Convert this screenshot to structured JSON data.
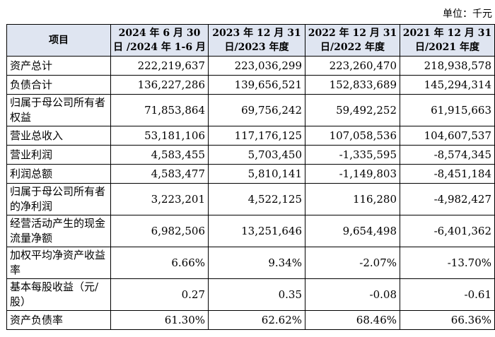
{
  "unit_note": "单位：千元",
  "table": {
    "headers": [
      "项目",
      "2024 年 6 月 30 日 /2024 年 1-6 月",
      "2023 年 12 月 31 日/2023 年度",
      "2022 年 12 月 31 日/2022 年度",
      "2021 年 12 月 31 日/2021 年度"
    ],
    "rows": [
      {
        "label": "资产总计",
        "values": [
          "222,219,637",
          "223,036,299",
          "223,260,470",
          "218,938,578"
        ]
      },
      {
        "label": "负债合计",
        "values": [
          "136,227,286",
          "139,656,521",
          "152,833,689",
          "145,294,314"
        ]
      },
      {
        "label": "归属于母公司所有者权益",
        "values": [
          "71,853,864",
          "69,756,242",
          "59,492,252",
          "61,915,663"
        ]
      },
      {
        "label": "营业总收入",
        "values": [
          "53,181,106",
          "117,176,125",
          "107,058,536",
          "104,607,537"
        ]
      },
      {
        "label": "营业利润",
        "values": [
          "4,583,455",
          "5,703,450",
          "-1,335,595",
          "-8,574,345"
        ]
      },
      {
        "label": "利润总额",
        "values": [
          "4,583,477",
          "5,810,141",
          "-1,149,803",
          "-8,451,184"
        ]
      },
      {
        "label": "归属于母公司所有者的净利润",
        "values": [
          "3,223,201",
          "4,522,125",
          "116,280",
          "-4,982,427"
        ]
      },
      {
        "label": "经营活动产生的现金流量净额",
        "values": [
          "6,982,506",
          "13,251,646",
          "9,654,498",
          "-6,401,362"
        ]
      },
      {
        "label": "加权平均净资产收益率",
        "values": [
          "6.66%",
          "9.34%",
          "-2.07%",
          "-13.70%"
        ]
      },
      {
        "label": "基本每股收益（元/股）",
        "values": [
          "0.27",
          "0.35",
          "-0.08",
          "-0.61"
        ]
      },
      {
        "label": "资产负债率",
        "values": [
          "61.30%",
          "62.62%",
          "68.46%",
          "66.36%"
        ]
      }
    ]
  }
}
